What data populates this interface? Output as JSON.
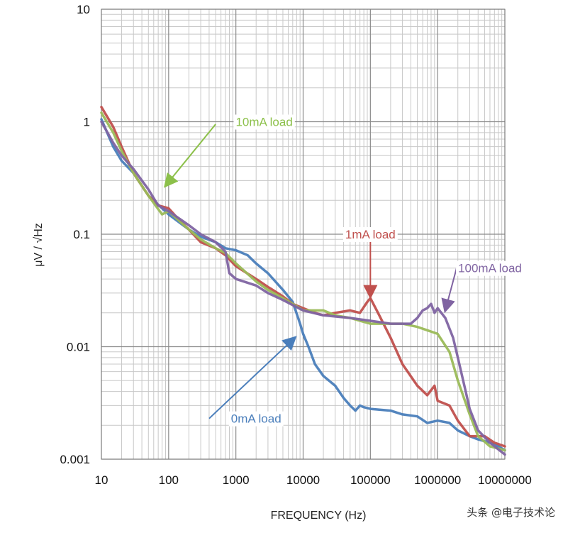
{
  "chart_data": {
    "type": "line",
    "xlabel": "FREQUENCY (Hz)",
    "ylabel": "μV / √Hz",
    "xscale": "log",
    "yscale": "log",
    "xlim": [
      10,
      10000000
    ],
    "ylim": [
      0.001,
      10
    ],
    "grid": true,
    "x_tick_labels": [
      "10",
      "100",
      "1000",
      "10000",
      "100000",
      "1000000",
      "10000000"
    ],
    "y_tick_labels": [
      "0.001",
      "0.01",
      "0.1",
      "1",
      "10"
    ],
    "series": [
      {
        "name": "0mA load",
        "color": "#4a7ebb",
        "points": [
          [
            9,
            1.05
          ],
          [
            15,
            0.6
          ],
          [
            20,
            0.45
          ],
          [
            30,
            0.35
          ],
          [
            50,
            0.22
          ],
          [
            80,
            0.17
          ],
          [
            100,
            0.15
          ],
          [
            200,
            0.11
          ],
          [
            300,
            0.095
          ],
          [
            500,
            0.085
          ],
          [
            700,
            0.075
          ],
          [
            1000,
            0.072
          ],
          [
            1500,
            0.065
          ],
          [
            2000,
            0.055
          ],
          [
            3000,
            0.045
          ],
          [
            5000,
            0.032
          ],
          [
            7000,
            0.025
          ],
          [
            9000,
            0.016
          ],
          [
            10000,
            0.013
          ],
          [
            12000,
            0.01
          ],
          [
            15000,
            0.007
          ],
          [
            20000,
            0.0055
          ],
          [
            30000,
            0.0045
          ],
          [
            40000,
            0.0035
          ],
          [
            50000,
            0.003
          ],
          [
            60000,
            0.0027
          ],
          [
            70000,
            0.003
          ],
          [
            80000,
            0.0029
          ],
          [
            100000,
            0.0028
          ],
          [
            200000,
            0.0027
          ],
          [
            300000,
            0.0025
          ],
          [
            500000,
            0.0024
          ],
          [
            700000,
            0.0021
          ],
          [
            1000000,
            0.0022
          ],
          [
            1500000,
            0.0021
          ],
          [
            2000000,
            0.0018
          ],
          [
            3000000,
            0.0016
          ],
          [
            4000000,
            0.0015
          ],
          [
            6000000,
            0.0014
          ],
          [
            8000000,
            0.0013
          ],
          [
            10000000,
            0.0012
          ]
        ]
      },
      {
        "name": "1mA load",
        "color": "#c0504d",
        "points": [
          [
            9,
            1.35
          ],
          [
            15,
            0.9
          ],
          [
            20,
            0.6
          ],
          [
            30,
            0.35
          ],
          [
            50,
            0.22
          ],
          [
            70,
            0.18
          ],
          [
            100,
            0.17
          ],
          [
            150,
            0.13
          ],
          [
            200,
            0.11
          ],
          [
            300,
            0.085
          ],
          [
            500,
            0.075
          ],
          [
            700,
            0.065
          ],
          [
            1000,
            0.052
          ],
          [
            2000,
            0.04
          ],
          [
            3000,
            0.034
          ],
          [
            5000,
            0.028
          ],
          [
            7000,
            0.024
          ],
          [
            10000,
            0.022
          ],
          [
            15000,
            0.02
          ],
          [
            20000,
            0.019
          ],
          [
            30000,
            0.02
          ],
          [
            50000,
            0.021
          ],
          [
            70000,
            0.02
          ],
          [
            90000,
            0.025
          ],
          [
            100000,
            0.027
          ],
          [
            130000,
            0.02
          ],
          [
            200000,
            0.012
          ],
          [
            300000,
            0.007
          ],
          [
            500000,
            0.0045
          ],
          [
            700000,
            0.0037
          ],
          [
            900000,
            0.0045
          ],
          [
            1000000,
            0.0033
          ],
          [
            1500000,
            0.003
          ],
          [
            2000000,
            0.0022
          ],
          [
            3000000,
            0.0016
          ],
          [
            5000000,
            0.0016
          ],
          [
            7000000,
            0.0014
          ],
          [
            10000000,
            0.0013
          ]
        ]
      },
      {
        "name": "10mA load",
        "color": "#9bbb59",
        "points": [
          [
            9,
            1.2
          ],
          [
            15,
            0.8
          ],
          [
            20,
            0.55
          ],
          [
            30,
            0.35
          ],
          [
            50,
            0.22
          ],
          [
            80,
            0.15
          ],
          [
            100,
            0.16
          ],
          [
            200,
            0.11
          ],
          [
            300,
            0.09
          ],
          [
            500,
            0.075
          ],
          [
            700,
            0.068
          ],
          [
            1000,
            0.055
          ],
          [
            2000,
            0.038
          ],
          [
            3000,
            0.032
          ],
          [
            5000,
            0.027
          ],
          [
            7000,
            0.024
          ],
          [
            10000,
            0.021
          ],
          [
            15000,
            0.021
          ],
          [
            20000,
            0.021
          ],
          [
            30000,
            0.019
          ],
          [
            50000,
            0.018
          ],
          [
            70000,
            0.017
          ],
          [
            100000,
            0.016
          ],
          [
            200000,
            0.016
          ],
          [
            300000,
            0.016
          ],
          [
            500000,
            0.015
          ],
          [
            700000,
            0.014
          ],
          [
            1000000,
            0.013
          ],
          [
            1500000,
            0.009
          ],
          [
            2000000,
            0.005
          ],
          [
            3000000,
            0.0025
          ],
          [
            4000000,
            0.0016
          ],
          [
            6000000,
            0.0013
          ],
          [
            10000000,
            0.0012
          ]
        ]
      },
      {
        "name": "100mA load",
        "color": "#8064a2",
        "points": [
          [
            9,
            1.0
          ],
          [
            15,
            0.65
          ],
          [
            20,
            0.5
          ],
          [
            30,
            0.38
          ],
          [
            50,
            0.25
          ],
          [
            70,
            0.18
          ],
          [
            100,
            0.16
          ],
          [
            200,
            0.12
          ],
          [
            300,
            0.1
          ],
          [
            500,
            0.085
          ],
          [
            700,
            0.07
          ],
          [
            800,
            0.045
          ],
          [
            1000,
            0.04
          ],
          [
            2000,
            0.035
          ],
          [
            3000,
            0.03
          ],
          [
            5000,
            0.026
          ],
          [
            10000,
            0.021
          ],
          [
            20000,
            0.019
          ],
          [
            50000,
            0.018
          ],
          [
            100000,
            0.017
          ],
          [
            200000,
            0.016
          ],
          [
            400000,
            0.016
          ],
          [
            500000,
            0.018
          ],
          [
            600000,
            0.021
          ],
          [
            700000,
            0.022
          ],
          [
            800000,
            0.024
          ],
          [
            900000,
            0.02
          ],
          [
            1000000,
            0.022
          ],
          [
            1300000,
            0.018
          ],
          [
            1700000,
            0.012
          ],
          [
            2000000,
            0.008
          ],
          [
            2500000,
            0.0045
          ],
          [
            3000000,
            0.0028
          ],
          [
            4000000,
            0.0018
          ],
          [
            6000000,
            0.0014
          ],
          [
            10000000,
            0.0011
          ]
        ]
      }
    ],
    "annotations": [
      {
        "text": "10mA load",
        "color": "#8cc04a",
        "text_at": [
          7000,
          1
        ],
        "arrow_from": [
          500,
          0.95
        ],
        "arrow_to": [
          90,
          0.27
        ]
      },
      {
        "text": "1mA load",
        "color": "#c0504d",
        "text_at": [
          100000,
          0.1
        ],
        "arrow_from": [
          100000,
          0.09
        ],
        "arrow_to": [
          100000,
          0.028
        ]
      },
      {
        "text": "100mA load",
        "color": "#8064a2",
        "text_at": [
          6000000,
          0.05
        ],
        "arrow_from": [
          2000000,
          0.055
        ],
        "arrow_to": [
          1300000,
          0.021
        ]
      },
      {
        "text": "0mA load",
        "color": "#4a7ebb",
        "text_at": [
          2000,
          0.0023
        ],
        "arrow_from": [
          400,
          0.0023
        ],
        "arrow_to": [
          7500,
          0.012
        ]
      }
    ]
  },
  "watermark": "头条 @电子技术论"
}
